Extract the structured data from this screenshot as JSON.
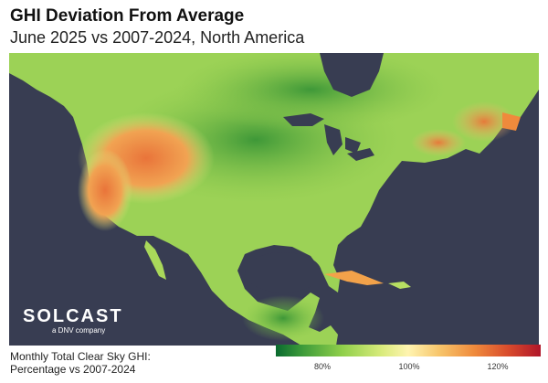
{
  "title": "GHI Deviation From Average",
  "subtitle": "June 2025 vs 2007-2024, North America",
  "logo": {
    "brand": "SOLCAST",
    "tagline": "a DNV company"
  },
  "legend": {
    "title_line1": "Monthly Total Clear Sky GHI:",
    "title_line2": "Percentage vs 2007-2024",
    "ticks": [
      "80%",
      "100%",
      "120%"
    ]
  },
  "colors": {
    "ocean": "#383d52",
    "land_low": "#2d8a3a",
    "land_mid": "#9fd35a",
    "land_high": "#ef8a3c"
  }
}
